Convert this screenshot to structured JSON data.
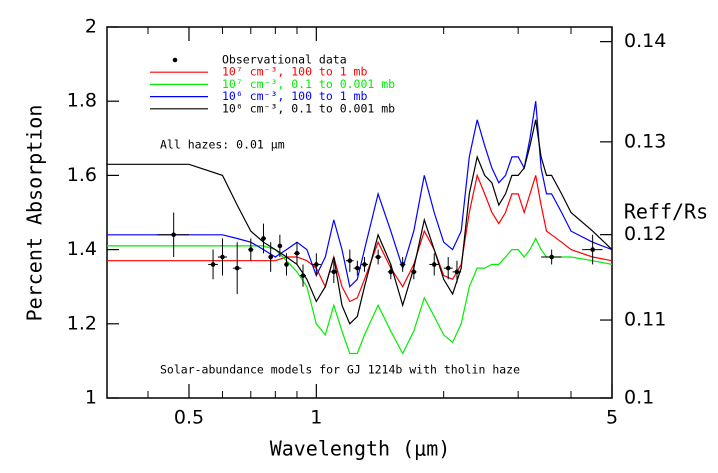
{
  "chart_data": {
    "type": "line",
    "xlabel": "Wavelength (μm)",
    "ylabel": "Percent Absorption",
    "y2label": "Reff/Rs",
    "annotations": [
      "All hazes: 0.01 μm",
      "Solar-abundance models for GJ 1214b with tholin haze"
    ],
    "xscale": "log",
    "xlim": [
      0.32,
      5
    ],
    "xticks": [
      0.5,
      1,
      5
    ],
    "xminorticks": [
      0.4,
      0.6,
      0.7,
      0.8,
      0.9,
      2,
      3,
      4
    ],
    "ylim": [
      1,
      2
    ],
    "yticks": [
      1,
      1.2,
      1.4,
      1.6,
      1.8,
      2
    ],
    "y2lim": [
      0.1,
      0.1414
    ],
    "y2ticks": [
      0.1,
      0.11,
      0.12,
      0.13,
      0.14
    ],
    "legend": "upper left",
    "x": [
      0.32,
      0.5,
      0.6,
      0.65,
      0.7,
      0.75,
      0.8,
      0.85,
      0.9,
      0.95,
      1.0,
      1.05,
      1.1,
      1.15,
      1.2,
      1.25,
      1.3,
      1.4,
      1.5,
      1.6,
      1.7,
      1.8,
      1.9,
      2.0,
      2.1,
      2.2,
      2.3,
      2.4,
      2.5,
      2.6,
      2.7,
      2.8,
      2.9,
      3.0,
      3.1,
      3.2,
      3.3,
      3.4,
      3.5,
      3.6,
      3.8,
      4.0,
      4.5,
      5.0
    ],
    "observations": {
      "name": "Observational data",
      "color": "#000000",
      "x": [
        0.46,
        0.57,
        0.6,
        0.65,
        0.7,
        0.75,
        0.78,
        0.82,
        0.85,
        0.9,
        0.93,
        1.0,
        1.1,
        1.2,
        1.25,
        1.3,
        1.4,
        1.5,
        1.6,
        1.7,
        1.9,
        2.05,
        2.15,
        3.6,
        4.5
      ],
      "values": [
        1.44,
        1.36,
        1.38,
        1.35,
        1.4,
        1.43,
        1.38,
        1.41,
        1.36,
        1.39,
        1.33,
        1.36,
        1.34,
        1.37,
        1.35,
        1.36,
        1.38,
        1.34,
        1.36,
        1.34,
        1.36,
        1.35,
        1.34,
        1.38,
        1.4
      ],
      "yerr": [
        0.06,
        0.04,
        0.05,
        0.07,
        0.03,
        0.04,
        0.04,
        0.03,
        0.03,
        0.03,
        0.03,
        0.03,
        0.03,
        0.03,
        0.02,
        0.02,
        0.02,
        0.02,
        0.02,
        0.02,
        0.03,
        0.03,
        0.03,
        0.02,
        0.04
      ],
      "xerr": [
        0.08,
        0.03,
        0.03,
        0.03,
        0.02,
        0.02,
        0.02,
        0.02,
        0.02,
        0.03,
        0.03,
        0.05,
        0.05,
        0.05,
        0.05,
        0.05,
        0.05,
        0.05,
        0.05,
        0.05,
        0.1,
        0.1,
        0.1,
        0.4,
        0.5
      ]
    },
    "series": [
      {
        "name": "10⁷ cm⁻³, 100 to 1 mb",
        "color": "#ff0000",
        "values": [
          1.37,
          1.37,
          1.37,
          1.37,
          1.37,
          1.37,
          1.37,
          1.38,
          1.38,
          1.37,
          1.35,
          1.3,
          1.38,
          1.3,
          1.26,
          1.27,
          1.32,
          1.42,
          1.35,
          1.3,
          1.36,
          1.45,
          1.4,
          1.33,
          1.32,
          1.36,
          1.5,
          1.6,
          1.55,
          1.5,
          1.47,
          1.5,
          1.55,
          1.55,
          1.5,
          1.55,
          1.6,
          1.52,
          1.45,
          1.44,
          1.42,
          1.4,
          1.38,
          1.37
        ]
      },
      {
        "name": "10⁷ cm⁻³, 0.1 to 0.001 mb",
        "color": "#00ee00",
        "values": [
          1.41,
          1.41,
          1.41,
          1.41,
          1.41,
          1.41,
          1.4,
          1.37,
          1.34,
          1.3,
          1.2,
          1.17,
          1.25,
          1.18,
          1.12,
          1.12,
          1.17,
          1.25,
          1.18,
          1.12,
          1.18,
          1.27,
          1.22,
          1.17,
          1.15,
          1.2,
          1.3,
          1.35,
          1.35,
          1.36,
          1.36,
          1.38,
          1.4,
          1.4,
          1.38,
          1.4,
          1.43,
          1.4,
          1.38,
          1.38,
          1.38,
          1.38,
          1.37,
          1.36
        ]
      },
      {
        "name": "10⁶ cm⁻³, 100 to 1 mb",
        "color": "#0000ff",
        "values": [
          1.44,
          1.44,
          1.44,
          1.43,
          1.42,
          1.4,
          1.38,
          1.4,
          1.42,
          1.4,
          1.33,
          1.38,
          1.48,
          1.4,
          1.3,
          1.32,
          1.4,
          1.55,
          1.45,
          1.35,
          1.45,
          1.6,
          1.5,
          1.42,
          1.4,
          1.45,
          1.65,
          1.75,
          1.68,
          1.62,
          1.58,
          1.6,
          1.65,
          1.65,
          1.62,
          1.7,
          1.8,
          1.62,
          1.55,
          1.55,
          1.5,
          1.45,
          1.42,
          1.4
        ]
      },
      {
        "name": "10⁶ cm⁻³, 0.1 to 0.001 mb",
        "color": "#000000",
        "values": [
          1.63,
          1.63,
          1.6,
          1.52,
          1.45,
          1.42,
          1.4,
          1.38,
          1.36,
          1.32,
          1.26,
          1.3,
          1.38,
          1.25,
          1.2,
          1.22,
          1.3,
          1.44,
          1.36,
          1.25,
          1.35,
          1.48,
          1.4,
          1.32,
          1.28,
          1.35,
          1.55,
          1.65,
          1.6,
          1.58,
          1.52,
          1.55,
          1.6,
          1.6,
          1.62,
          1.68,
          1.75,
          1.65,
          1.6,
          1.6,
          1.55,
          1.5,
          1.45,
          1.4
        ]
      }
    ]
  }
}
